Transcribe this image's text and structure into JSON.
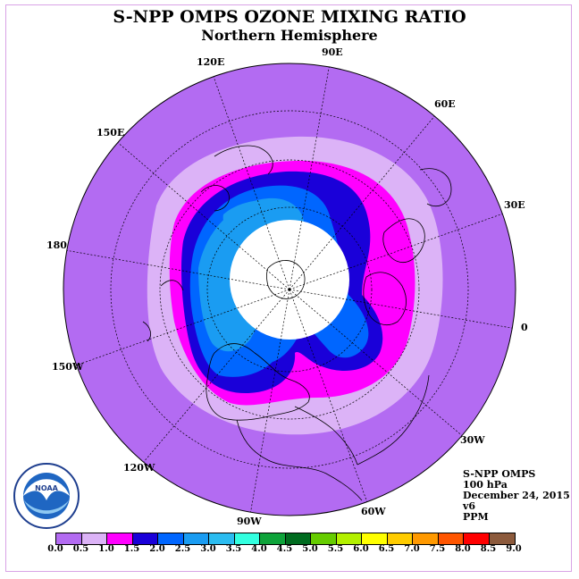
{
  "title": "S-NPP OMPS OZONE MIXING RATIO",
  "subtitle": "Northern Hemisphere",
  "longitude_labels": {
    "e90": "90E",
    "e60": "60E",
    "e30": "30E",
    "e0": "0",
    "w30": "30W",
    "w60": "60W",
    "w90": "90W",
    "w120": "120W",
    "w150": "150W",
    "e180": "180",
    "e150": "150E",
    "e120": "120E"
  },
  "info": {
    "instrument": "S-NPP OMPS",
    "level": "100 hPa",
    "date": "December 24, 2015",
    "version": "v6",
    "units": "PPM"
  },
  "logo_text": "NOAA",
  "colorbar": {
    "colors": [
      "#b36bf2",
      "#dcb3f7",
      "#ff00ff",
      "#1a00d9",
      "#0066ff",
      "#1a9cf2",
      "#2bbcf0",
      "#33ffe0",
      "#0ea33a",
      "#006b1f",
      "#66cc00",
      "#b3f000",
      "#ffff00",
      "#ffcc00",
      "#ff9900",
      "#ff5500",
      "#ff0000",
      "#8c5a3c"
    ],
    "ticks": [
      "0.0",
      "0.5",
      "1.0",
      "1.5",
      "2.0",
      "2.5",
      "3.0",
      "3.5",
      "4.0",
      "4.5",
      "5.0",
      "5.5",
      "6.0",
      "6.5",
      "7.0",
      "7.5",
      "8.0",
      "8.5",
      "9.0"
    ]
  },
  "colors": {
    "background_fill": "#b36bf2",
    "band_0_5": "#dcb3f7",
    "band_1_0": "#ff00ff",
    "band_1_5": "#1a00d9",
    "band_2_0": "#0066ff",
    "band_2_5": "#1a9cf2",
    "no_data": "#ffffff"
  }
}
